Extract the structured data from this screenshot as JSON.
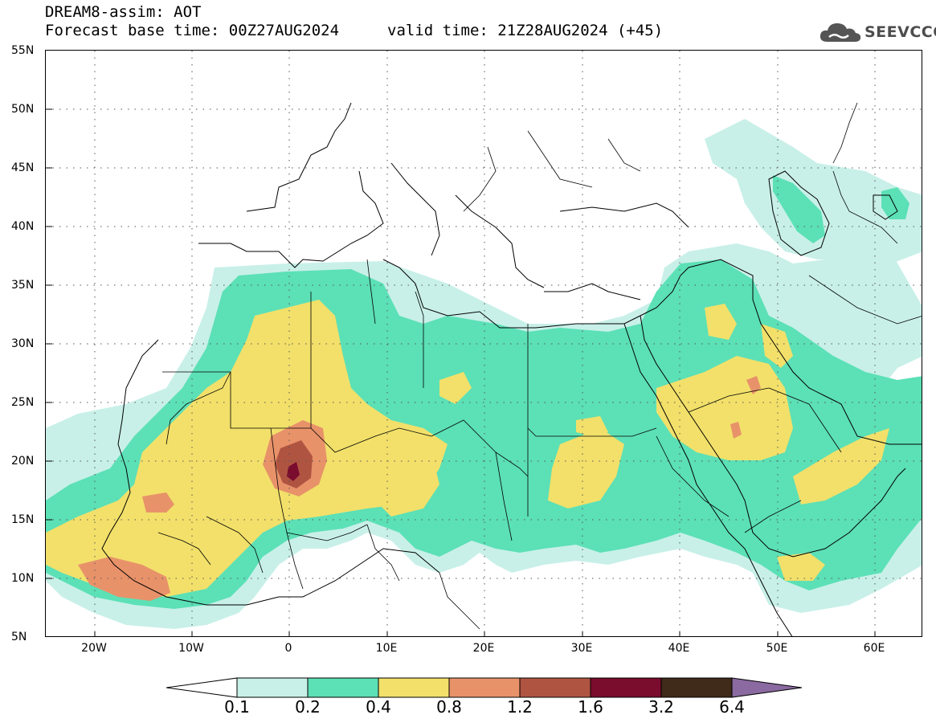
{
  "title": {
    "line1": "DREAM8-assim: AOT",
    "line2": "Forecast base time: 00Z27AUG2024",
    "valid": "valid time: 21Z28AUG2024 (+45)"
  },
  "logo": {
    "text": "SEEVCCC",
    "icon": "cloud-icon"
  },
  "axes": {
    "lat_labels": [
      "55N",
      "50N",
      "45N",
      "40N",
      "35N",
      "30N",
      "25N",
      "20N",
      "15N",
      "10N",
      "5N"
    ],
    "lon_labels": [
      "20W",
      "10W",
      "0",
      "10E",
      "20E",
      "30E",
      "40E",
      "50E",
      "60E"
    ],
    "lat_range": [
      5,
      55
    ],
    "lon_range": [
      -25,
      65
    ],
    "grid": "dotted"
  },
  "colorbar": {
    "levels": [
      "0.1",
      "0.2",
      "0.4",
      "0.8",
      "1.2",
      "1.6",
      "3.2",
      "6.4"
    ],
    "colors": [
      "#ffffff",
      "#c8f0e8",
      "#5ce0b6",
      "#f2e06a",
      "#e8926a",
      "#b05442",
      "#7a0c2e",
      "#402a1a",
      "#8a6aa0"
    ]
  },
  "field_colors": {
    "c01": "#c8f0e8",
    "c02": "#5ce0b6",
    "c04": "#f2e06a",
    "c08": "#e8926a",
    "c12": "#b05442",
    "c16": "#7a0c2e"
  }
}
